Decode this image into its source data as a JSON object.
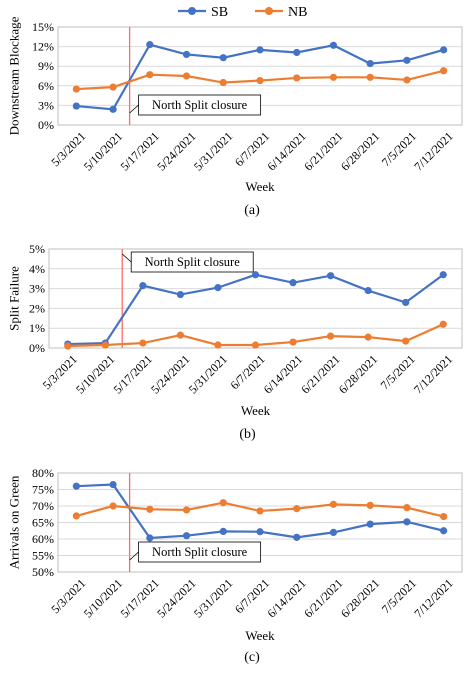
{
  "legend": {
    "series": [
      {
        "name": "SB",
        "color": "#4472C4"
      },
      {
        "name": "NB",
        "color": "#ED7D31"
      }
    ]
  },
  "chart_data": [
    {
      "type": "line",
      "panel_label": "(a)",
      "ylabel": "Downstream Blockage",
      "xlabel": "Week",
      "categories": [
        "5/3/2021",
        "5/10/2021",
        "5/17/2021",
        "5/24/2021",
        "5/31/2021",
        "6/7/2021",
        "6/14/2021",
        "6/21/2021",
        "6/28/2021",
        "7/5/2021",
        "7/12/2021"
      ],
      "ylim": [
        0,
        15
      ],
      "yticks": [
        "0%",
        "3%",
        "6%",
        "9%",
        "12%",
        "15%"
      ],
      "y_tick_values": [
        0,
        3,
        6,
        9,
        12,
        15
      ],
      "series": [
        {
          "name": "SB",
          "values": [
            2.9,
            2.4,
            12.3,
            10.8,
            10.3,
            11.5,
            11.1,
            12.2,
            9.4,
            9.9,
            11.5
          ]
        },
        {
          "name": "NB",
          "values": [
            5.5,
            5.8,
            7.7,
            7.5,
            6.5,
            6.8,
            7.2,
            7.3,
            7.3,
            6.9,
            8.3
          ]
        }
      ],
      "annotation": {
        "text": "North Split closure",
        "x_after_index": 1.45,
        "position": "bottom"
      },
      "grid": true
    },
    {
      "type": "line",
      "panel_label": "(b)",
      "ylabel": "Split Failure",
      "xlabel": "Week",
      "categories": [
        "5/3/2021",
        "5/10/2021",
        "5/17/2021",
        "5/24/2021",
        "5/31/2021",
        "6/7/2021",
        "6/14/2021",
        "6/21/2021",
        "6/28/2021",
        "7/5/2021",
        "7/12/2021"
      ],
      "ylim": [
        0,
        5
      ],
      "yticks": [
        "0%",
        "1%",
        "2%",
        "3%",
        "4%",
        "5%"
      ],
      "y_tick_values": [
        0,
        1,
        2,
        3,
        4,
        5
      ],
      "series": [
        {
          "name": "SB",
          "values": [
            0.2,
            0.25,
            3.15,
            2.7,
            3.05,
            3.7,
            3.3,
            3.65,
            2.9,
            2.3,
            3.7
          ]
        },
        {
          "name": "NB",
          "values": [
            0.1,
            0.15,
            0.25,
            0.65,
            0.15,
            0.15,
            0.3,
            0.6,
            0.55,
            0.35,
            1.2
          ]
        }
      ],
      "annotation": {
        "text": "North Split closure",
        "x_after_index": 1.45,
        "position": "top"
      },
      "grid": true
    },
    {
      "type": "line",
      "panel_label": "(c)",
      "ylabel": "Arrivals on Green",
      "xlabel": "Week",
      "categories": [
        "5/3/2021",
        "5/10/2021",
        "5/17/2021",
        "5/24/2021",
        "5/31/2021",
        "6/7/2021",
        "6/14/2021",
        "6/21/2021",
        "6/28/2021",
        "7/5/2021",
        "7/12/2021"
      ],
      "ylim": [
        50,
        80
      ],
      "yticks": [
        "50%",
        "55%",
        "60%",
        "65%",
        "70%",
        "75%",
        "80%"
      ],
      "y_tick_values": [
        50,
        55,
        60,
        65,
        70,
        75,
        80
      ],
      "series": [
        {
          "name": "SB",
          "values": [
            76.0,
            76.5,
            60.3,
            61.0,
            62.3,
            62.2,
            60.5,
            62.0,
            64.5,
            65.2,
            62.5
          ]
        },
        {
          "name": "NB",
          "values": [
            67.0,
            70.0,
            69.0,
            68.8,
            71.0,
            68.5,
            69.2,
            70.5,
            70.2,
            69.5,
            66.8
          ]
        }
      ],
      "annotation": {
        "text": "North Split closure",
        "x_after_index": 1.45,
        "position": "bottom"
      },
      "grid": true
    }
  ]
}
